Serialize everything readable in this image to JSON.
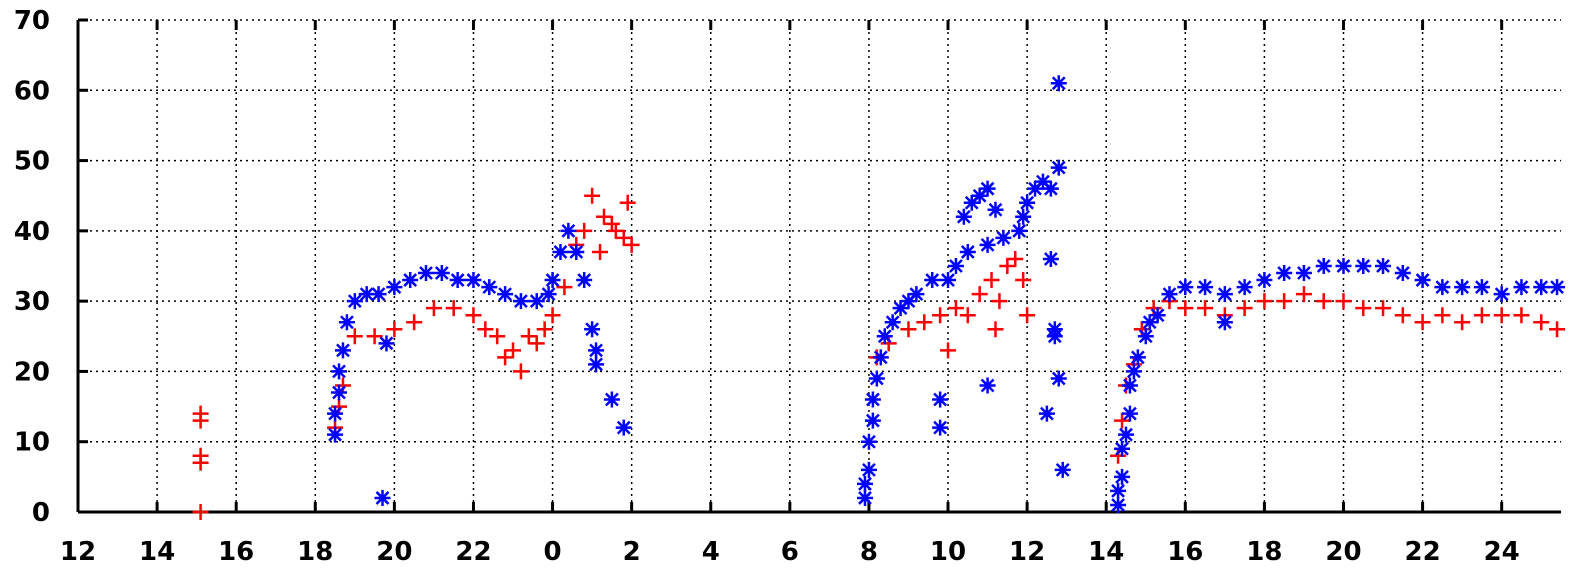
{
  "chart_data": {
    "type": "scatter",
    "title": "",
    "xlabel": "",
    "ylabel": "",
    "grid": true,
    "legend": "none",
    "ylim": [
      0,
      70
    ],
    "xlim_hours": [
      12,
      49.5
    ],
    "x_tick_labels": [
      "12",
      "14",
      "16",
      "18",
      "20",
      "22",
      "0",
      "2",
      "4",
      "6",
      "8",
      "10",
      "12",
      "14",
      "16",
      "18",
      "20",
      "22",
      "24"
    ],
    "y_tick_labels": [
      "0",
      "10",
      "20",
      "30",
      "40",
      "50",
      "60",
      "70"
    ],
    "y_ticks": [
      0,
      10,
      20,
      30,
      40,
      50,
      60,
      70
    ],
    "series": [
      {
        "marker": "plus",
        "color": "#ff0000",
        "points": [
          [
            15.1,
            14
          ],
          [
            15.1,
            13
          ],
          [
            15.1,
            8
          ],
          [
            15.1,
            7
          ],
          [
            15.1,
            0
          ],
          [
            18.5,
            12
          ],
          [
            18.6,
            15
          ],
          [
            18.7,
            18
          ],
          [
            19,
            25
          ],
          [
            19.5,
            25
          ],
          [
            20,
            26
          ],
          [
            20.5,
            27
          ],
          [
            21,
            29
          ],
          [
            21.5,
            29
          ],
          [
            22,
            28
          ],
          [
            22.3,
            26
          ],
          [
            22.6,
            25
          ],
          [
            22.8,
            22
          ],
          [
            23,
            23
          ],
          [
            23.2,
            20
          ],
          [
            23.4,
            25
          ],
          [
            23.6,
            24
          ],
          [
            23.8,
            26
          ],
          [
            24,
            28
          ],
          [
            24.3,
            32
          ],
          [
            24.6,
            38
          ],
          [
            24.8,
            40
          ],
          [
            25,
            45
          ],
          [
            25.3,
            42
          ],
          [
            25.6,
            40
          ],
          [
            25.9,
            44
          ],
          [
            26,
            38
          ],
          [
            25.2,
            37
          ],
          [
            25.5,
            41
          ],
          [
            25.8,
            39
          ],
          [
            32.2,
            22
          ],
          [
            32.5,
            24
          ],
          [
            33,
            26
          ],
          [
            33.4,
            27
          ],
          [
            33.8,
            28
          ],
          [
            34.2,
            29
          ],
          [
            34.5,
            28
          ],
          [
            34.8,
            31
          ],
          [
            35.1,
            33
          ],
          [
            35.3,
            30
          ],
          [
            35.5,
            35
          ],
          [
            35.7,
            36
          ],
          [
            35.9,
            33
          ],
          [
            36,
            28
          ],
          [
            34,
            23
          ],
          [
            35.2,
            26
          ],
          [
            38.3,
            8
          ],
          [
            38.4,
            13
          ],
          [
            38.5,
            18
          ],
          [
            38.7,
            21
          ],
          [
            38.9,
            26
          ],
          [
            39.2,
            29
          ],
          [
            39.6,
            30
          ],
          [
            40,
            29
          ],
          [
            40.5,
            29
          ],
          [
            41,
            28
          ],
          [
            41.5,
            29
          ],
          [
            42,
            30
          ],
          [
            42.5,
            30
          ],
          [
            43,
            31
          ],
          [
            43.5,
            30
          ],
          [
            44,
            30
          ],
          [
            44.5,
            29
          ],
          [
            45,
            29
          ],
          [
            45.5,
            28
          ],
          [
            46,
            27
          ],
          [
            46.5,
            28
          ],
          [
            47,
            27
          ],
          [
            47.5,
            28
          ],
          [
            48,
            28
          ],
          [
            48.5,
            28
          ],
          [
            49,
            27
          ],
          [
            49.4,
            26
          ]
        ]
      },
      {
        "marker": "star",
        "color": "#0000ff",
        "points": [
          [
            18.5,
            11
          ],
          [
            18.5,
            14
          ],
          [
            18.6,
            17
          ],
          [
            18.6,
            20
          ],
          [
            18.7,
            23
          ],
          [
            18.8,
            27
          ],
          [
            19,
            30
          ],
          [
            19.3,
            31
          ],
          [
            19.6,
            31
          ],
          [
            19.8,
            24
          ],
          [
            19.7,
            2
          ],
          [
            20,
            32
          ],
          [
            20.4,
            33
          ],
          [
            20.8,
            34
          ],
          [
            21.2,
            34
          ],
          [
            21.6,
            33
          ],
          [
            22,
            33
          ],
          [
            22.4,
            32
          ],
          [
            22.8,
            31
          ],
          [
            23.2,
            30
          ],
          [
            23.6,
            30
          ],
          [
            23.9,
            31
          ],
          [
            24,
            33
          ],
          [
            24.2,
            37
          ],
          [
            24.4,
            40
          ],
          [
            24.6,
            37
          ],
          [
            24.8,
            33
          ],
          [
            25,
            26
          ],
          [
            25.1,
            23
          ],
          [
            25.1,
            21
          ],
          [
            25.5,
            16
          ],
          [
            25.8,
            12
          ],
          [
            31.9,
            2
          ],
          [
            31.9,
            4
          ],
          [
            32,
            6
          ],
          [
            32,
            10
          ],
          [
            32.1,
            13
          ],
          [
            32.1,
            16
          ],
          [
            32.2,
            19
          ],
          [
            32.3,
            22
          ],
          [
            32.4,
            25
          ],
          [
            32.6,
            27
          ],
          [
            32.8,
            29
          ],
          [
            33,
            30
          ],
          [
            33.2,
            31
          ],
          [
            33.6,
            33
          ],
          [
            33.8,
            16
          ],
          [
            33.8,
            12
          ],
          [
            34,
            33
          ],
          [
            34.2,
            35
          ],
          [
            34.4,
            42
          ],
          [
            34.6,
            44
          ],
          [
            34.8,
            45
          ],
          [
            35,
            46
          ],
          [
            35.2,
            43
          ],
          [
            35,
            18
          ],
          [
            34.5,
            37
          ],
          [
            35,
            38
          ],
          [
            35.4,
            39
          ],
          [
            35.8,
            40
          ],
          [
            35.9,
            42
          ],
          [
            36,
            44
          ],
          [
            36.2,
            46
          ],
          [
            36.4,
            47
          ],
          [
            36.6,
            46
          ],
          [
            36.8,
            49
          ],
          [
            36.6,
            36
          ],
          [
            36.7,
            26
          ],
          [
            36.7,
            25
          ],
          [
            36.8,
            19
          ],
          [
            36.5,
            14
          ],
          [
            36.9,
            6
          ],
          [
            36.8,
            61
          ],
          [
            38.3,
            1
          ],
          [
            38.3,
            3
          ],
          [
            38.4,
            5
          ],
          [
            38.4,
            9
          ],
          [
            38.5,
            11
          ],
          [
            38.6,
            14
          ],
          [
            38.6,
            18
          ],
          [
            38.7,
            20
          ],
          [
            38.8,
            22
          ],
          [
            39,
            25
          ],
          [
            39.1,
            27
          ],
          [
            39.3,
            28
          ],
          [
            39.6,
            31
          ],
          [
            40,
            32
          ],
          [
            40.5,
            32
          ],
          [
            41,
            31
          ],
          [
            41.5,
            32
          ],
          [
            42,
            33
          ],
          [
            42.5,
            34
          ],
          [
            43,
            34
          ],
          [
            43.5,
            35
          ],
          [
            44,
            35
          ],
          [
            44.5,
            35
          ],
          [
            45,
            35
          ],
          [
            45.5,
            34
          ],
          [
            46,
            33
          ],
          [
            46.5,
            32
          ],
          [
            47,
            32
          ],
          [
            47.5,
            32
          ],
          [
            48,
            31
          ],
          [
            48.5,
            32
          ],
          [
            49,
            32
          ],
          [
            49.4,
            32
          ],
          [
            41,
            27
          ]
        ]
      }
    ]
  }
}
